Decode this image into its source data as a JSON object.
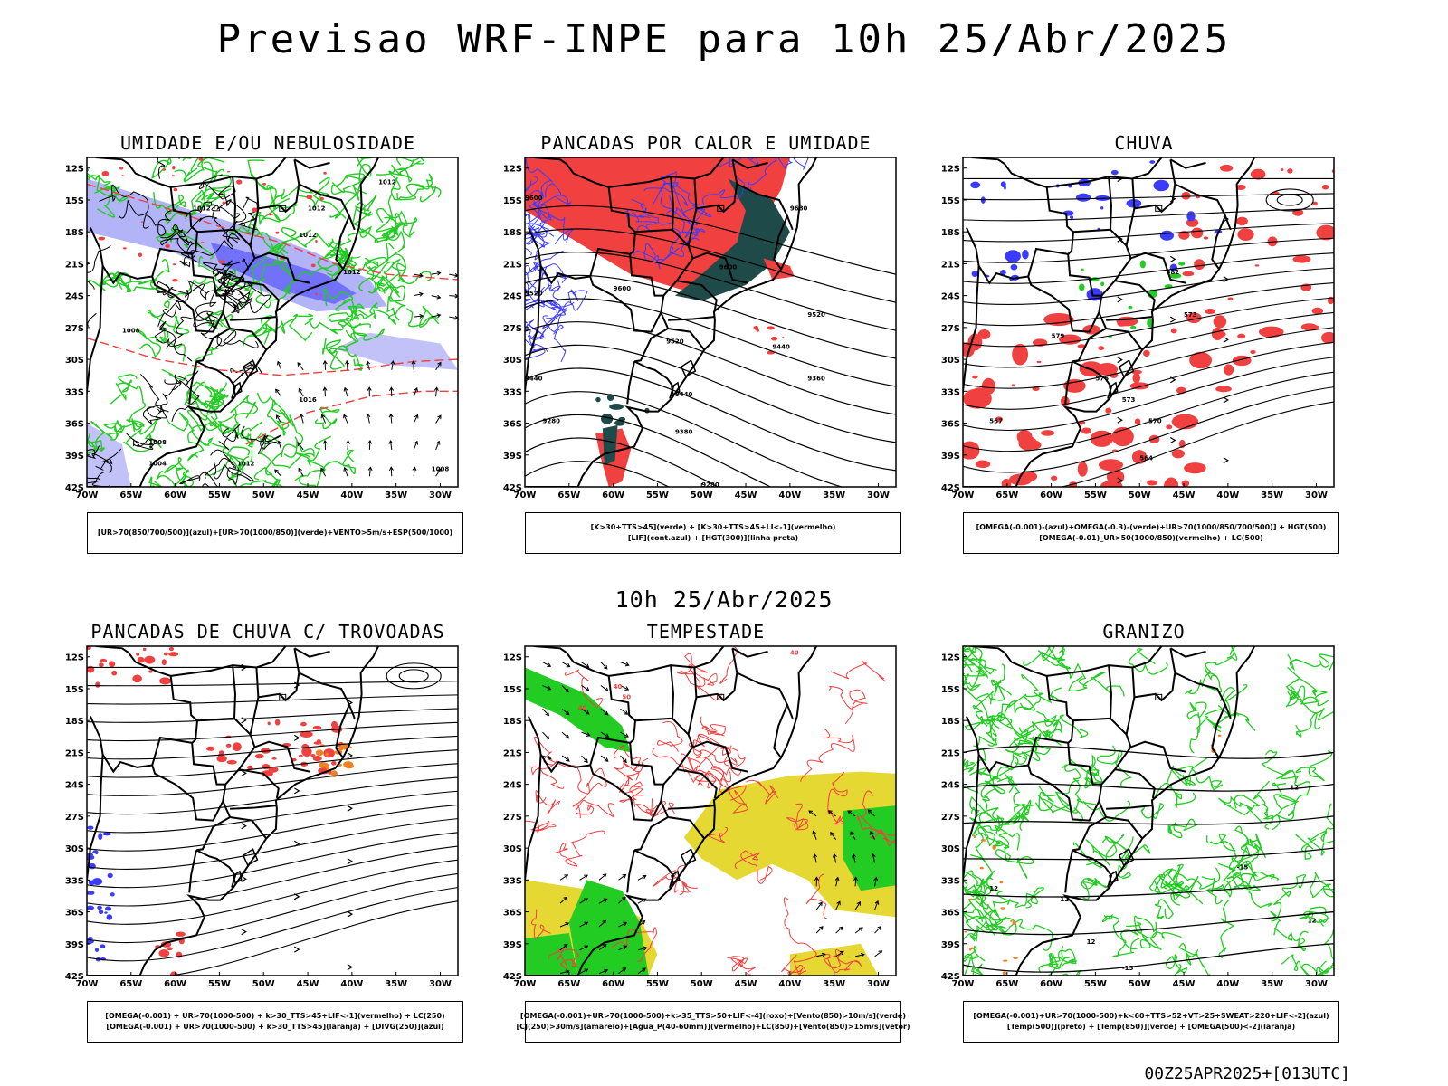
{
  "header": {
    "title": "Previsao WRF-INPE  para 10h 25/Abr/2025"
  },
  "middle_label": "10h 25/Abr/2025",
  "footer": "00Z25APR2025+[013UTC]",
  "axes": {
    "lat_ticks": [
      "12S",
      "15S",
      "18S",
      "21S",
      "24S",
      "27S",
      "30S",
      "33S",
      "36S",
      "39S",
      "42S"
    ],
    "lon_ticks": [
      "70W",
      "65W",
      "60W",
      "55W",
      "50W",
      "45W",
      "40W",
      "35W",
      "30W"
    ]
  },
  "colors": {
    "blue": "#3b3bff",
    "green": "#22cc22",
    "red": "#f04040",
    "orange": "#f08020",
    "yellow": "#e6d832",
    "lavender": "#9a9af5",
    "darkteal": "#1f4a4a",
    "black": "#000000"
  },
  "panels": [
    {
      "id": "p1",
      "title": "UMIDADE E/OU NEBULOSIDADE",
      "legend": [
        "[UR>70(850/700/500)](azul)+[UR>70(1000/850)](verde)+VENTO>5m/s+ESP(500/1000)"
      ],
      "contour_labels": [
        "1012",
        "1012",
        "1012",
        "1012",
        "1012",
        "1008",
        "1016",
        "1008",
        "1012",
        "1004",
        "1008"
      ]
    },
    {
      "id": "p2",
      "title": "PANCADAS POR CALOR E UMIDADE",
      "legend": [
        "[K>30+TTS>45](verde) + [K>30+TTS>45+LI<-1](vermelho)",
        "[LIF](cont.azul) + [HGT(300)](linha preta)"
      ],
      "contour_labels": [
        "9680",
        "9600",
        "9600",
        "9520",
        "9520",
        "9600",
        "9440",
        "9520",
        "9440",
        "9360",
        "9280",
        "9380",
        "9280",
        "9440"
      ]
    },
    {
      "id": "p3",
      "title": "CHUVA",
      "legend": [
        "[OMEGA(-0.001)-(azul)+OMEGA(-0.3)-(verde)+UR>70(1000/850/700/500)] + HGT(500)",
        "[OMEGA(-0.01)_UR>50(1000/850)(vermelho) + LC(500)"
      ],
      "contour_labels": [
        "582",
        "579",
        "576",
        "573",
        "570",
        "567",
        "564",
        "573"
      ]
    },
    {
      "id": "p4",
      "title": "PANCADAS DE CHUVA C/ TROVOADAS",
      "legend": [
        "[OMEGA(-0.001) + UR>70(1000-500) + k>30_TTS>45+LIF<-1](vermelho) + LC(250)",
        "[OMEGA(-0.001) + UR>70(1000-500) + k>30_TTS>45](laranja) + [DIVG(250)](azul)"
      ],
      "contour_labels": []
    },
    {
      "id": "p5",
      "title": "TEMPESTADE",
      "legend": [
        "[OMEGA(-0.001)+UR>70(1000-500)+k>35_TTS>50+LIF<-4](roxo)+[Vento(850)>10m/s](verde)",
        "[CJ(250)>30m/s](amarelo)+[Agua_P(40-60mm)](vermelho)+LC(850)+[Vento(850)>15m/s](vetor)"
      ],
      "contour_labels": [
        "40",
        "40",
        "50",
        "40"
      ]
    },
    {
      "id": "p6",
      "title": "GRANIZO",
      "legend": [
        "[OMEGA(-0.001)+UR>70(1000-500)+k<60+TTS>52+VT>25+SWEAT>220+LIF<-2](azul)",
        "[Temp(500)](preto) + [Temp(850)](verde) + [OMEGA(500)<-2](laranja)"
      ],
      "contour_labels": [
        "12",
        "12",
        "-15",
        "12",
        "-15",
        "12",
        "12"
      ]
    }
  ]
}
